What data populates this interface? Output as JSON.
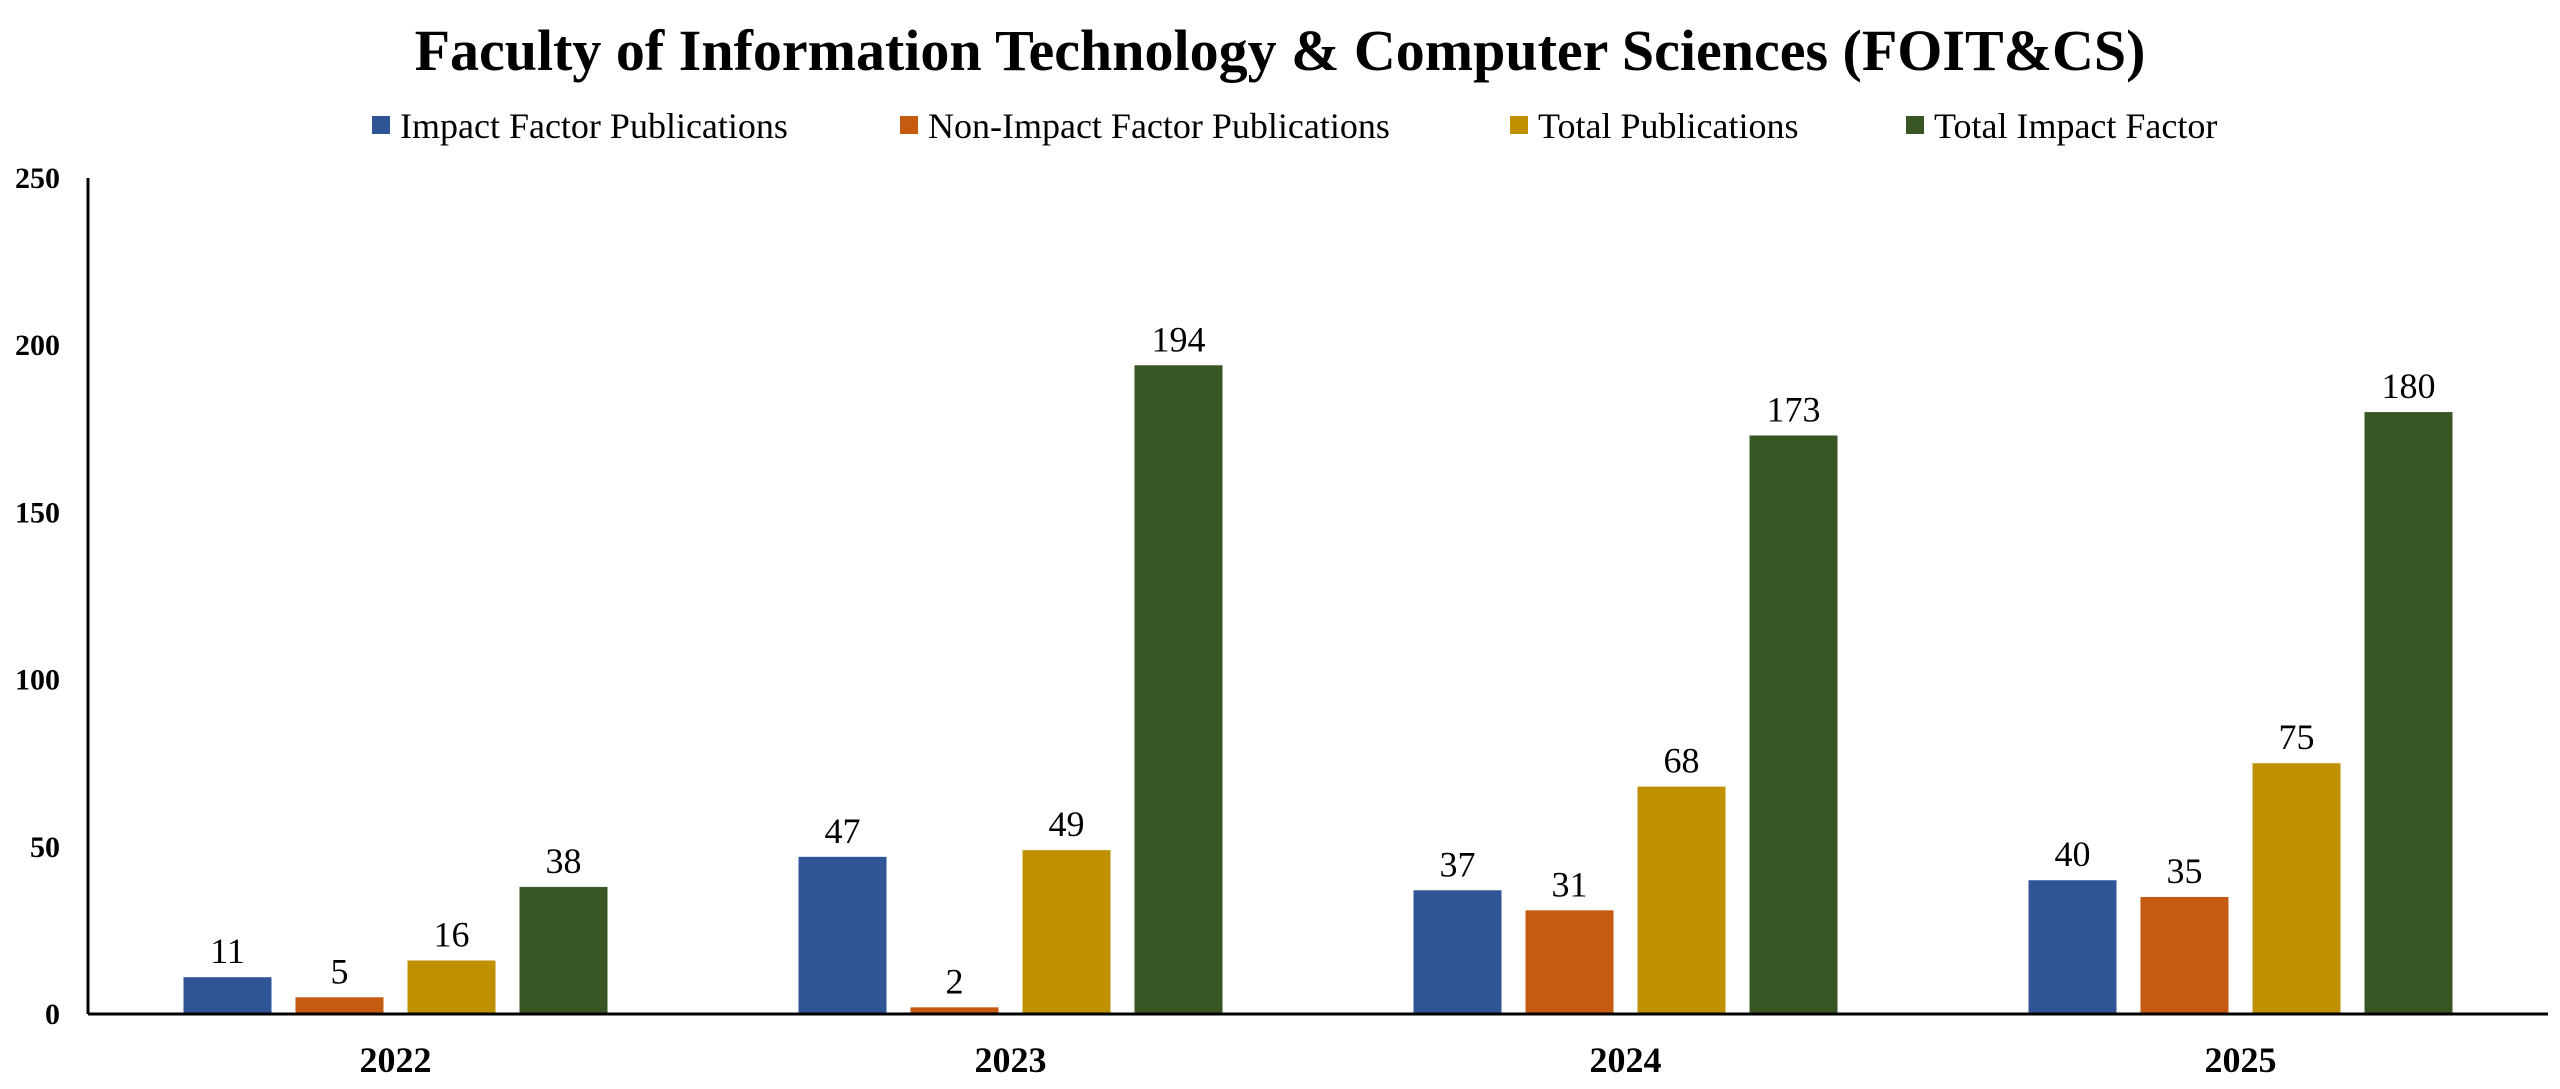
{
  "chart_data": {
    "type": "bar",
    "title": "Faculty of Information Technology & Computer Sciences (FOIT&CS)",
    "xlabel": "",
    "ylabel": "",
    "categories": [
      "2022",
      "2023",
      "2024",
      "2025"
    ],
    "series": [
      {
        "name": "Impact Factor Publications",
        "color": "#2F5597",
        "values": [
          11,
          47,
          37,
          40
        ],
        "labels": [
          "11",
          "47",
          "37",
          "40"
        ]
      },
      {
        "name": "Non-Impact Factor Publications",
        "color": "#C55A11",
        "values": [
          5,
          2,
          31,
          35
        ],
        "labels": [
          "5",
          "2",
          "31",
          "35"
        ]
      },
      {
        "name": "Total Publications",
        "color": "#BF9000",
        "values": [
          16,
          49,
          68,
          75
        ],
        "labels": [
          "16",
          "49",
          "68",
          "75"
        ]
      },
      {
        "name": "Total Impact Factor",
        "color": "#375623",
        "values": [
          38,
          194,
          173,
          180
        ],
        "labels": [
          "38",
          "194",
          "173",
          "180"
        ]
      }
    ],
    "ylim": [
      0,
      250
    ],
    "yticks": [
      0,
      50,
      100,
      150,
      200,
      250
    ],
    "ytick_labels": [
      "0",
      "50",
      "100",
      "150",
      "200",
      "250"
    ],
    "grid": false,
    "legend_position": "top"
  }
}
